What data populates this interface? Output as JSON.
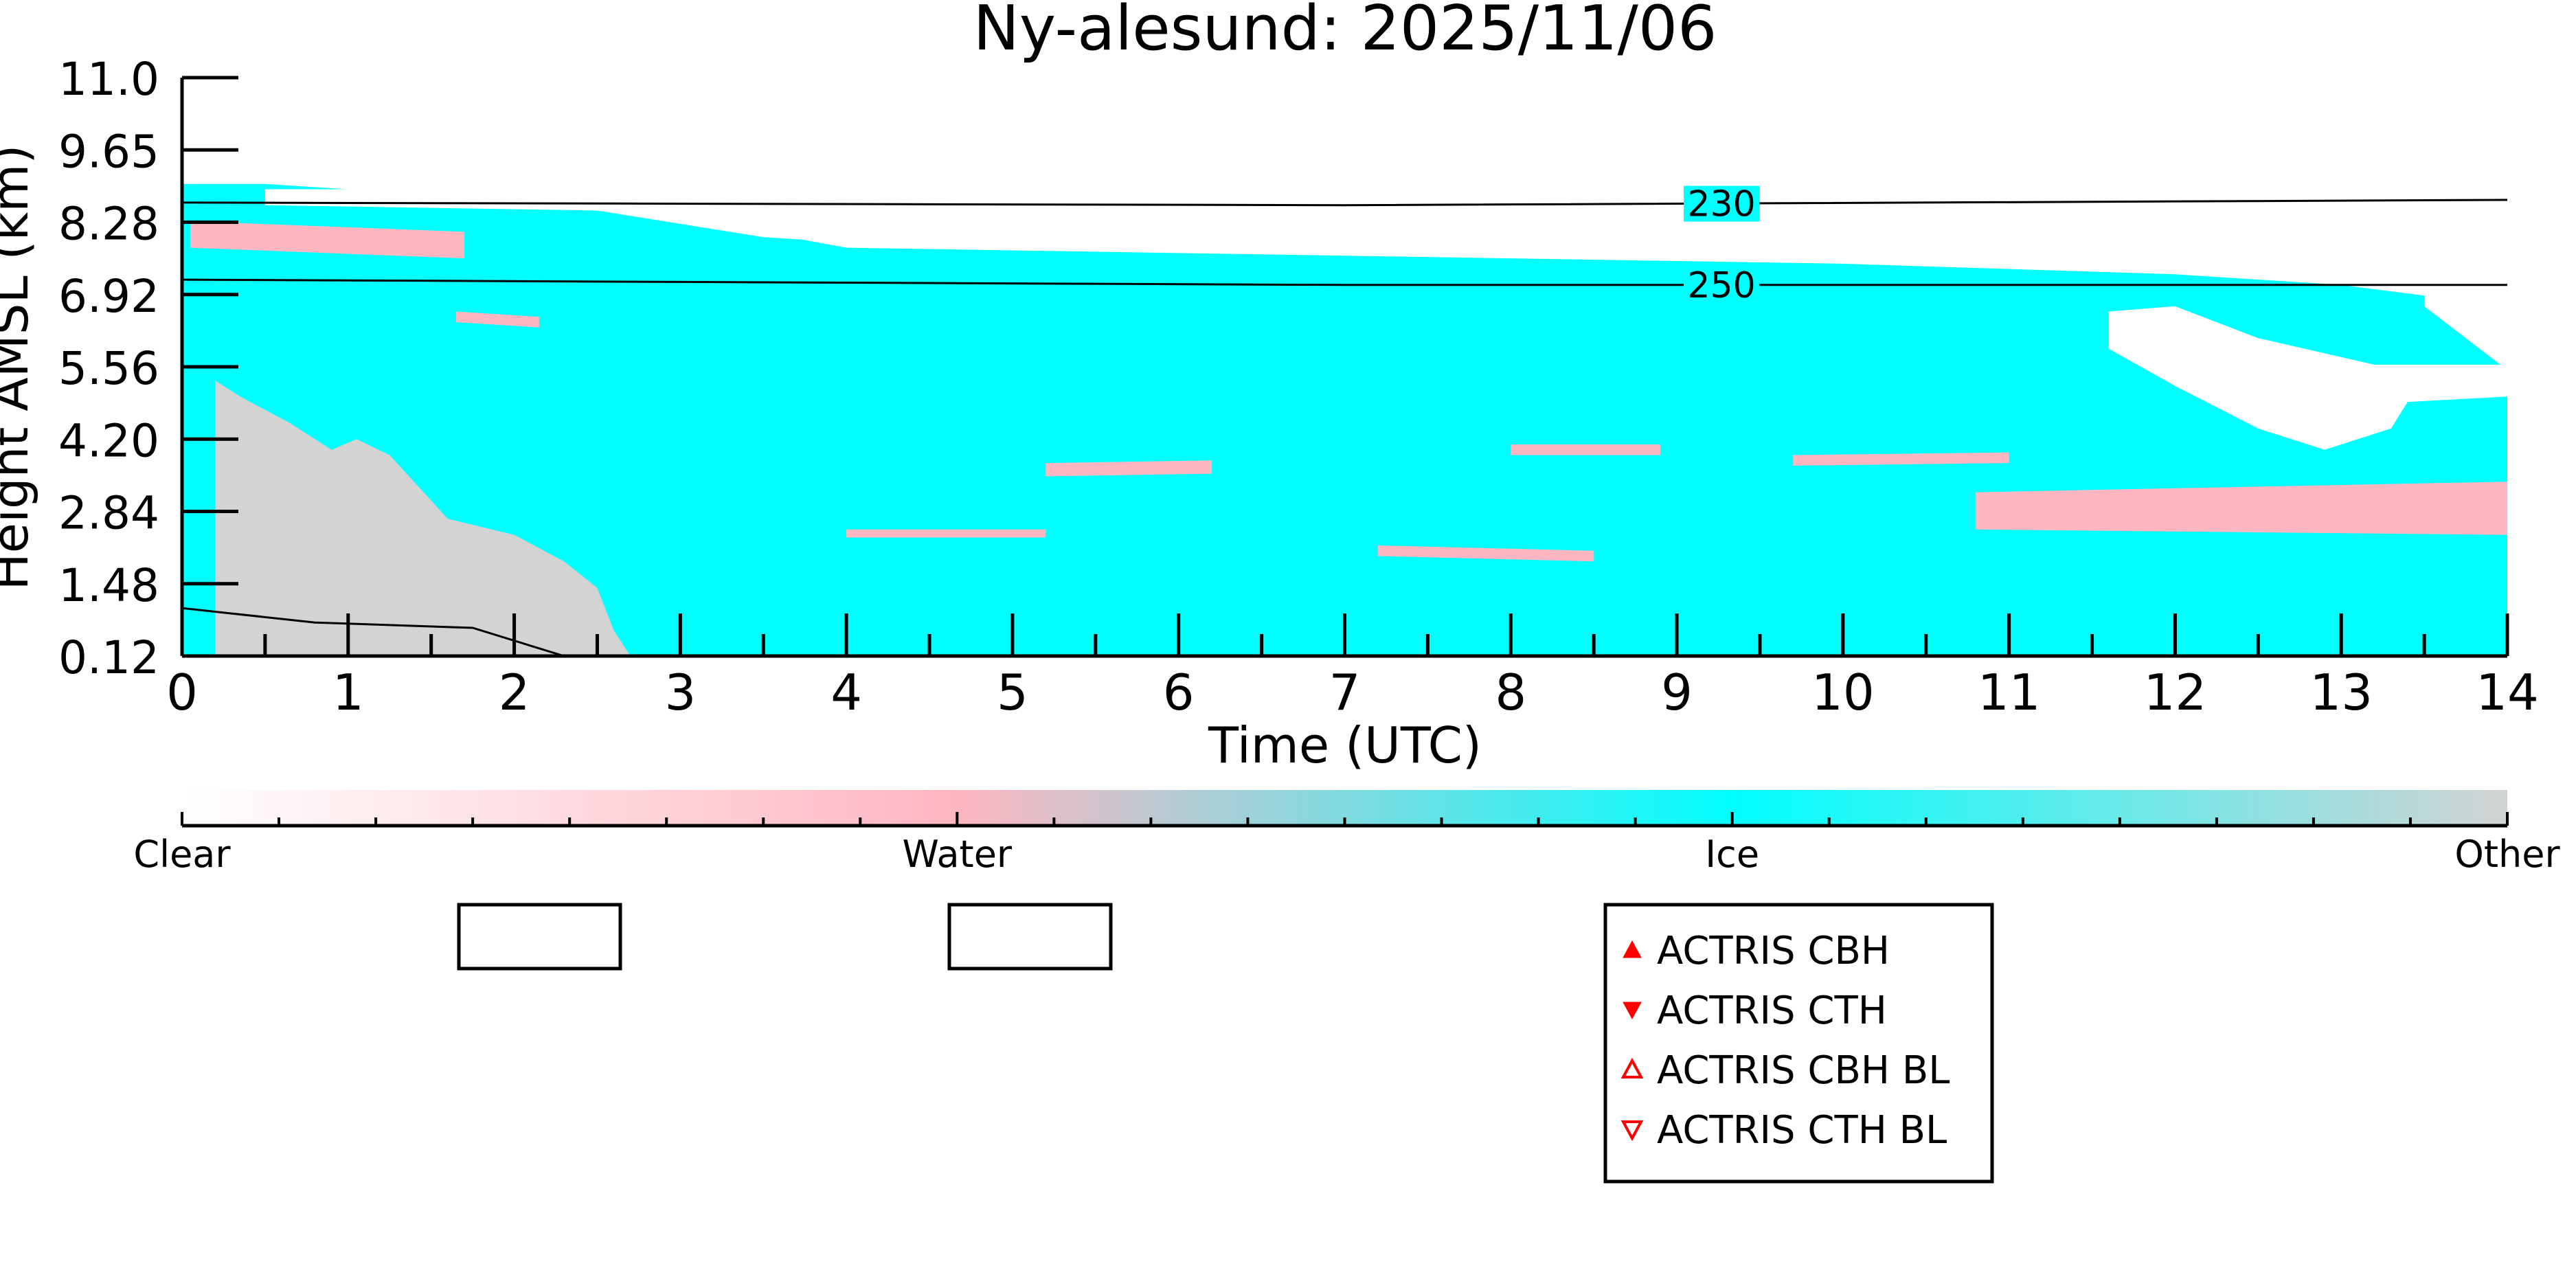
{
  "chart_data": {
    "type": "heatmap",
    "title": "Ny-alesund: 2025/11/06",
    "xlabel": "Time (UTC)",
    "ylabel": "Height AMSL (km)",
    "xlim": [
      0,
      14
    ],
    "ylim": [
      0.12,
      11.0
    ],
    "x_ticks": [
      "0",
      "1",
      "2",
      "3",
      "4",
      "5",
      "6",
      "7",
      "8",
      "9",
      "10",
      "11",
      "12",
      "13",
      "14"
    ],
    "y_ticks": [
      "0.12",
      "1.48",
      "2.84",
      "4.20",
      "5.56",
      "6.92",
      "8.28",
      "9.65",
      "11.0"
    ],
    "classes": [
      {
        "name": "Clear",
        "color": "#ffffff"
      },
      {
        "name": "Water",
        "color": "#ffb6c1"
      },
      {
        "name": "Ice",
        "color": "#00ffff"
      },
      {
        "name": "Other",
        "color": "#d3d3d3"
      }
    ],
    "cloud_regions": [
      {
        "class": "Ice",
        "polygon": [
          [
            0,
            0.12
          ],
          [
            0,
            9.0
          ],
          [
            0.5,
            9.0
          ],
          [
            1.5,
            8.8
          ],
          [
            2.6,
            8.6
          ],
          [
            4.0,
            7.8
          ],
          [
            6.0,
            7.7
          ],
          [
            8.0,
            7.6
          ],
          [
            10.0,
            7.5
          ],
          [
            11.0,
            7.4
          ],
          [
            12.0,
            7.3
          ],
          [
            13.0,
            7.1
          ],
          [
            13.5,
            6.9
          ],
          [
            13.5,
            6.7
          ],
          [
            14,
            5.5
          ],
          [
            14,
            0.12
          ]
        ]
      },
      {
        "class": "Other",
        "polygon": [
          [
            0.2,
            0.12
          ],
          [
            0.2,
            5.3
          ],
          [
            0.35,
            5.0
          ],
          [
            0.65,
            4.5
          ],
          [
            0.9,
            4.0
          ],
          [
            1.05,
            4.2
          ],
          [
            1.25,
            3.9
          ],
          [
            1.6,
            2.7
          ],
          [
            2.0,
            2.4
          ],
          [
            2.3,
            1.9
          ],
          [
            2.5,
            1.4
          ],
          [
            2.6,
            0.6
          ],
          [
            2.7,
            0.12
          ]
        ]
      },
      {
        "class": "Water",
        "polygon": [
          [
            0.05,
            8.3
          ],
          [
            1.7,
            8.1
          ],
          [
            1.7,
            7.6
          ],
          [
            0.05,
            7.8
          ]
        ]
      },
      {
        "class": "Water",
        "polygon": [
          [
            1.65,
            6.6
          ],
          [
            2.15,
            6.5
          ],
          [
            2.15,
            6.3
          ],
          [
            1.65,
            6.4
          ]
        ]
      },
      {
        "class": "Water",
        "polygon": [
          [
            4.0,
            2.5
          ],
          [
            5.2,
            2.5
          ],
          [
            5.2,
            2.35
          ],
          [
            4.0,
            2.35
          ]
        ]
      },
      {
        "class": "Water",
        "polygon": [
          [
            5.2,
            3.75
          ],
          [
            6.2,
            3.8
          ],
          [
            6.2,
            3.55
          ],
          [
            5.2,
            3.5
          ]
        ]
      },
      {
        "class": "Water",
        "polygon": [
          [
            7.2,
            2.2
          ],
          [
            8.5,
            2.1
          ],
          [
            8.5,
            1.9
          ],
          [
            7.2,
            2.0
          ]
        ]
      },
      {
        "class": "Water",
        "polygon": [
          [
            8.0,
            4.1
          ],
          [
            8.9,
            4.1
          ],
          [
            8.9,
            3.9
          ],
          [
            8.0,
            3.9
          ]
        ]
      },
      {
        "class": "Water",
        "polygon": [
          [
            9.7,
            3.9
          ],
          [
            11.0,
            3.95
          ],
          [
            11.0,
            3.75
          ],
          [
            9.7,
            3.7
          ]
        ]
      },
      {
        "class": "Water",
        "polygon": [
          [
            10.8,
            3.2
          ],
          [
            14,
            3.4
          ],
          [
            14,
            2.4
          ],
          [
            10.8,
            2.5
          ]
        ]
      },
      {
        "class": "Clear",
        "polygon": [
          [
            11.6,
            6.6
          ],
          [
            12.0,
            6.7
          ],
          [
            12.5,
            6.1
          ],
          [
            13.2,
            5.6
          ],
          [
            14,
            5.6
          ],
          [
            14,
            5.0
          ],
          [
            13.4,
            4.9
          ],
          [
            13.3,
            4.4
          ],
          [
            12.9,
            4.0
          ],
          [
            12.5,
            4.4
          ],
          [
            12.0,
            5.2
          ],
          [
            11.6,
            5.9
          ]
        ]
      },
      {
        "class": "Clear",
        "polygon": [
          [
            0.5,
            8.6
          ],
          [
            2.5,
            8.5
          ],
          [
            3.5,
            8.0
          ],
          [
            4.5,
            7.8
          ],
          [
            4.0,
            8.6
          ],
          [
            2.5,
            8.9
          ],
          [
            0.5,
            8.9
          ]
        ]
      }
    ],
    "contours": [
      {
        "label": "230",
        "x": [
          0,
          7,
          14
        ],
        "y": [
          8.65,
          8.6,
          8.7
        ]
      },
      {
        "label": "250",
        "x": [
          0,
          7,
          14
        ],
        "y": [
          7.2,
          7.1,
          7.1
        ]
      },
      {
        "label": "",
        "x": [
          0,
          0.8,
          1.75,
          2.3
        ],
        "y": [
          1.02,
          0.75,
          0.65,
          0.12
        ]
      }
    ],
    "legend": {
      "placement": "bottom-center",
      "entries": [
        "ACTRIS CBH",
        "ACTRIS CTH",
        "ACTRIS CBH BL",
        "ACTRIS CTH BL"
      ],
      "marker_color": "#ff0000"
    }
  }
}
